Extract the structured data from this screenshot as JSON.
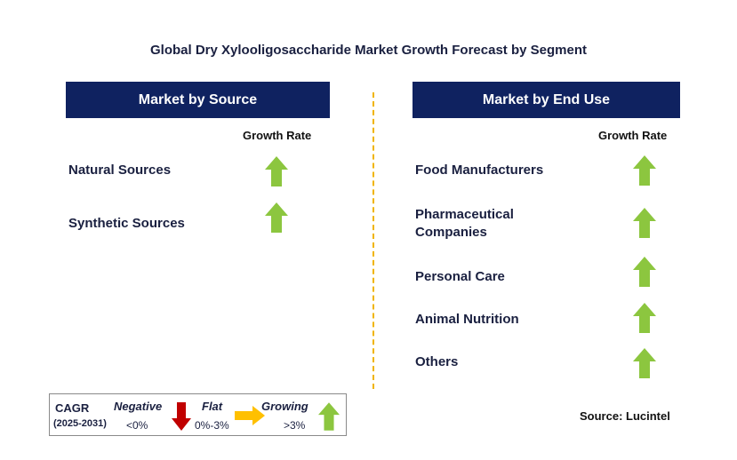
{
  "title": "Global Dry Xylooligosaccharide Market Growth Forecast by Segment",
  "left_panel": {
    "header": "Market by Source",
    "column_header": "Growth Rate",
    "rows": [
      {
        "label_lines": [
          "Natural Sources"
        ],
        "growth": "growing"
      },
      {
        "label_lines": [
          "Synthetic Sources"
        ],
        "growth": "growing"
      }
    ]
  },
  "right_panel": {
    "header": "Market by End Use",
    "column_header": "Growth Rate",
    "rows": [
      {
        "label_lines": [
          "Food Manufacturers"
        ],
        "growth": "growing"
      },
      {
        "label_lines": [
          "Pharmaceutical",
          "Companies"
        ],
        "growth": "growing"
      },
      {
        "label_lines": [
          "Personal Care"
        ],
        "growth": "growing"
      },
      {
        "label_lines": [
          "Animal Nutrition"
        ],
        "growth": "growing"
      },
      {
        "label_lines": [
          "Others"
        ],
        "growth": "growing"
      }
    ]
  },
  "legend": {
    "cagr_label": "CAGR",
    "period": "(2025-2031)",
    "negative": {
      "label": "Negative",
      "range": "<0%",
      "icon": "red-down-arrow-icon"
    },
    "flat": {
      "label": "Flat",
      "range": "0%-3%",
      "icon": "orange-right-arrow-icon"
    },
    "growing": {
      "label": "Growing",
      "range": ">3%",
      "icon": "green-up-arrow-icon"
    }
  },
  "source": "Source: Lucintel",
  "colors": {
    "header_bg": "#0f2260",
    "growing": "#8cc63f",
    "negative": "#c00000",
    "flat": "#ffc000",
    "divider": "#f0b400"
  }
}
